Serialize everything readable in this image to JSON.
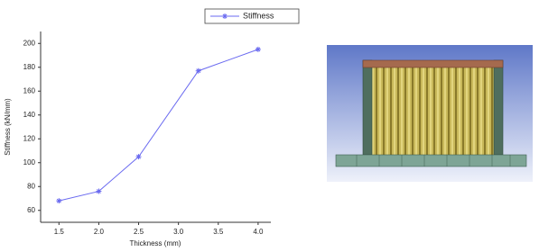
{
  "chart_data": {
    "type": "line",
    "x_label": "Thickness (mm)",
    "y_label": "Stiffness (kN/mm)",
    "x": [
      1.5,
      2.0,
      2.5,
      3.25,
      4.0
    ],
    "series": [
      {
        "name": "Stiffness",
        "color": "#6a6af0",
        "values": [
          68,
          76,
          105,
          177,
          195
        ]
      }
    ],
    "xlim": [
      1.27,
      4.16
    ],
    "xticks": [
      1.5,
      {
        "value": 2,
        "label": "2.0"
      },
      2.5,
      {
        "value": 3,
        "label": "3.0"
      },
      3.5,
      {
        "value": 4,
        "label": "4.0"
      }
    ],
    "ylim": [
      50,
      210
    ],
    "yticks": [
      60,
      80,
      100,
      120,
      140,
      160,
      180,
      200
    ],
    "legend": "top"
  }
}
